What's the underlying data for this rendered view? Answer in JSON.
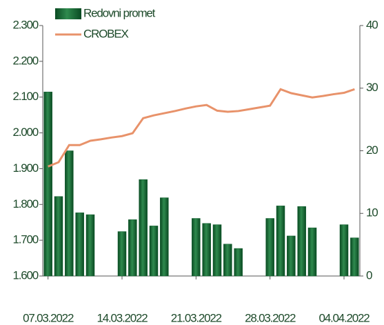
{
  "chart_data": {
    "type": "bar",
    "categories": [
      "07.03.2022",
      null,
      null,
      null,
      null,
      null,
      null,
      "14.03.2022",
      null,
      null,
      null,
      null,
      null,
      null,
      "21.03.2022",
      null,
      null,
      null,
      null,
      null,
      null,
      "28.03.2022",
      null,
      null,
      null,
      null,
      null,
      null,
      "04.04.2022",
      null
    ],
    "series": [
      {
        "name": "Redovni promet",
        "type": "bar",
        "axis": "y2",
        "color": "#0e5c2c",
        "values": [
          29.4,
          12.7,
          20.0,
          10.1,
          9.8,
          null,
          null,
          7.1,
          9.0,
          15.4,
          8.0,
          12.5,
          null,
          null,
          9.2,
          8.4,
          8.2,
          5.1,
          4.4,
          null,
          null,
          9.2,
          11.2,
          6.4,
          11.1,
          7.7,
          null,
          null,
          8.2,
          6.1
        ]
      },
      {
        "name": "CROBEX",
        "type": "line",
        "axis": "y",
        "color": "#e8926a",
        "values": [
          1906,
          1918,
          1966,
          1966,
          1978,
          1982,
          1987,
          1991,
          1999,
          2041,
          2049,
          2055,
          2061,
          2068,
          2074,
          2078,
          2062,
          2059,
          2061,
          2066,
          2071,
          2076,
          2122,
          2111,
          2105,
          2099,
          2103,
          2108,
          2112,
          2122
        ]
      }
    ],
    "ylim": [
      1600,
      2300
    ],
    "yticks": [
      {
        "value": 1600,
        "label": "1.600"
      },
      {
        "value": 1700,
        "label": "1.700"
      },
      {
        "value": 1800,
        "label": "1.800"
      },
      {
        "value": 1900,
        "label": "1.900"
      },
      {
        "value": 2000,
        "label": "2.000"
      },
      {
        "value": 2100,
        "label": "2.100"
      },
      {
        "value": 2200,
        "label": "2.200"
      },
      {
        "value": 2300,
        "label": "2.300"
      }
    ],
    "y2lim": [
      0,
      40
    ],
    "y2ticks": [
      0,
      10,
      20,
      30,
      40
    ],
    "legend": "upper left",
    "grid": false
  }
}
